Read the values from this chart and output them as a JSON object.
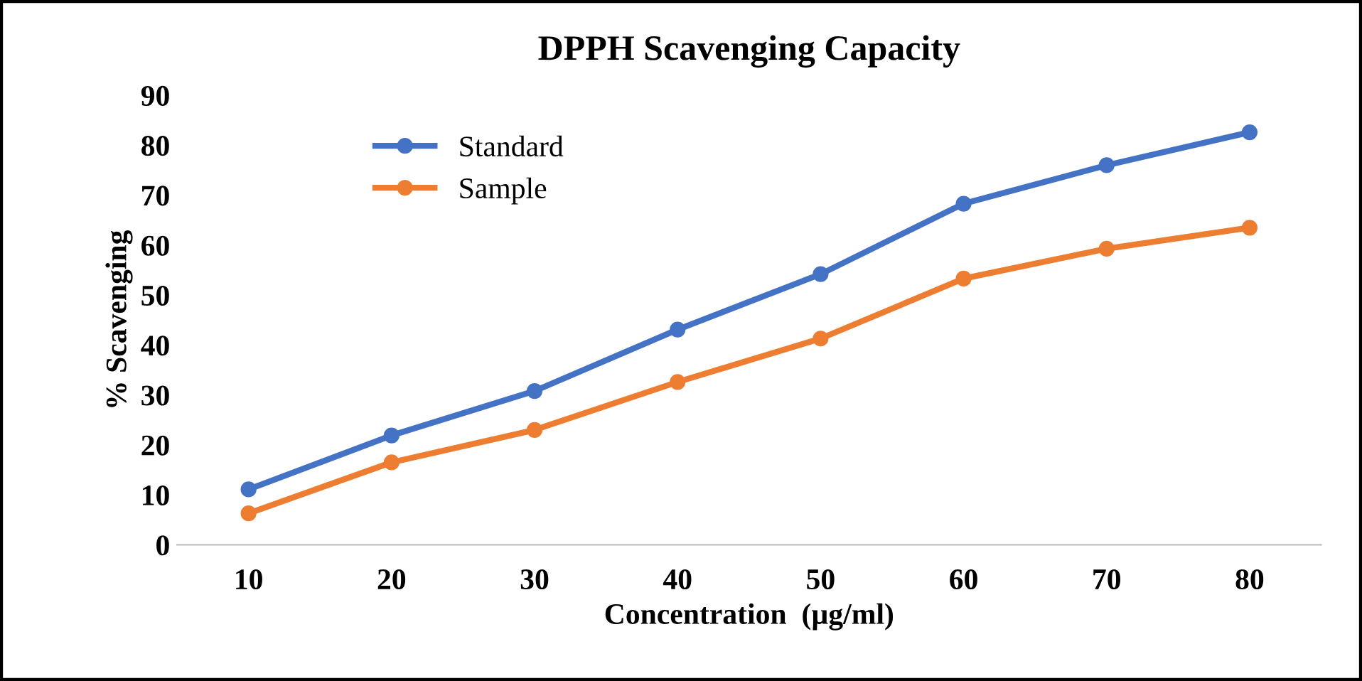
{
  "chart_data": {
    "type": "line",
    "title": "DPPH Scavenging Capacity",
    "xlabel": "Concentration  (µg/ml)",
    "ylabel": "% Scavenging",
    "categories": [
      "10",
      "20",
      "30",
      "40",
      "50",
      "60",
      "70",
      "80"
    ],
    "series": [
      {
        "name": "Standard",
        "color": "#4472c4",
        "values": [
          11.1,
          21.9,
          30.8,
          43.1,
          54.2,
          68.3,
          76.0,
          82.6
        ]
      },
      {
        "name": "Sample",
        "color": "#ed7d31",
        "values": [
          6.3,
          16.5,
          23.0,
          32.6,
          41.3,
          53.3,
          59.3,
          63.5
        ]
      }
    ],
    "ylim": [
      0,
      90
    ],
    "yticks": [
      0,
      10,
      20,
      30,
      40,
      50,
      60,
      70,
      80,
      90
    ],
    "grid": false,
    "legend": "top left",
    "marker": "circle",
    "line_style": "solid"
  }
}
